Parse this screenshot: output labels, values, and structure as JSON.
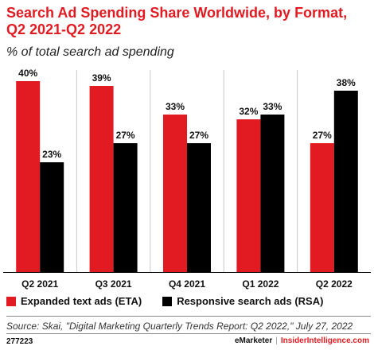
{
  "header": {
    "title": "Search Ad Spending Share Worldwide, by Format, Q2 2021-Q2 2022",
    "subtitle": "% of total search ad spending"
  },
  "chart_data": {
    "type": "bar",
    "categories": [
      "Q2 2021",
      "Q3 2021",
      "Q4 2021",
      "Q1 2022",
      "Q2 2022"
    ],
    "series": [
      {
        "name": "Expanded text ads (ETA)",
        "values": [
          40,
          39,
          33,
          32,
          27
        ],
        "labels": [
          "40%",
          "39%",
          "33%",
          "32%",
          "27%"
        ],
        "color": "#e21b23"
      },
      {
        "name": "Responsive search ads (RSA)",
        "values": [
          23,
          27,
          27,
          33,
          38
        ],
        "labels": [
          "23%",
          "27%",
          "27%",
          "33%",
          "38%"
        ],
        "color": "#000000"
      }
    ],
    "ylim": [
      0,
      40
    ],
    "grid": false,
    "legend": "bottom-left"
  },
  "footer": {
    "source": "Source: Skai, \"Digital Marketing Quarterly Trends Report: Q2 2022,\" July 27, 2022",
    "chart_id": "277223",
    "brand_emarketer": "eMarketer",
    "brand_separator": "|",
    "brand_ii": "InsiderIntelligence.com"
  }
}
